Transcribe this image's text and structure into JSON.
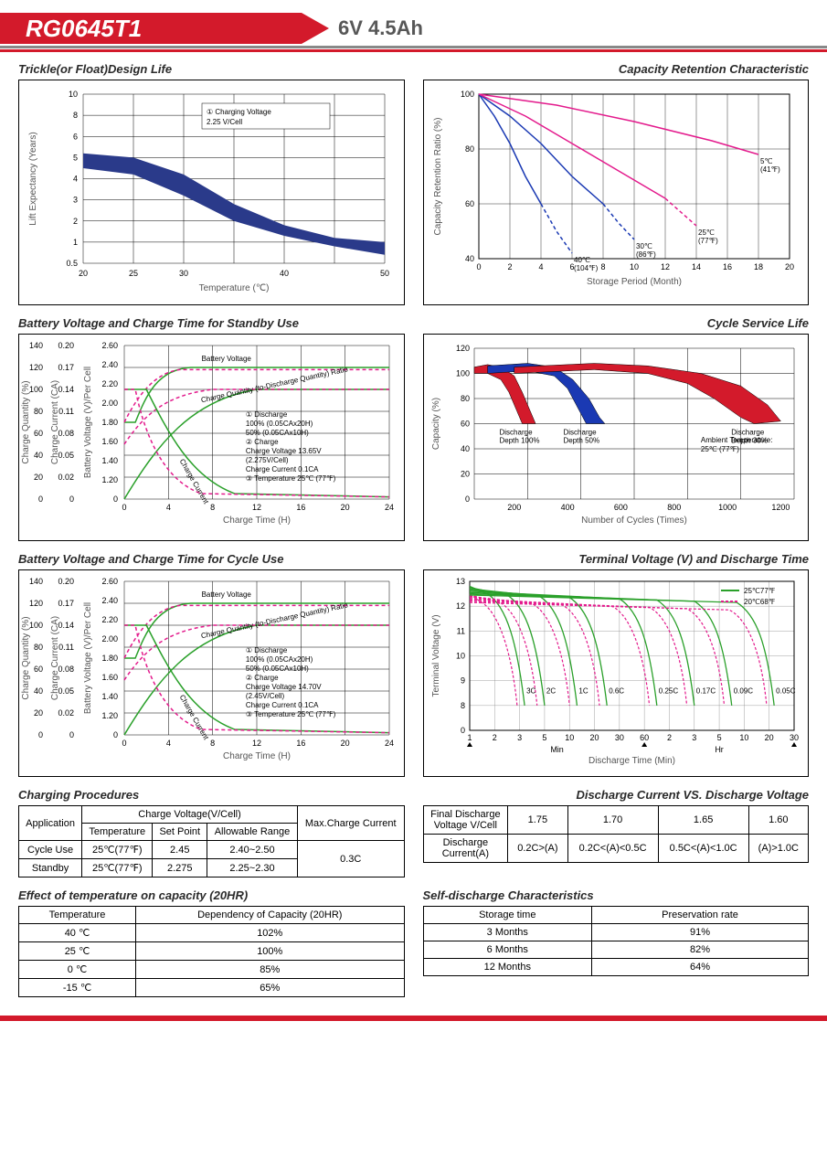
{
  "header": {
    "model": "RG0645T1",
    "spec": "6V  4.5Ah"
  },
  "charts": {
    "trickle": {
      "title": "Trickle(or Float)Design Life",
      "xlabel": "Temperature (℃)",
      "ylabel": "Lift Expectancy (Years)",
      "xticks": [
        20,
        25,
        30,
        40,
        50
      ],
      "yticks": [
        0.5,
        1,
        2,
        3,
        4,
        5,
        6,
        8,
        10
      ],
      "legend": "① Charging Voltage 2.25 V/Cell",
      "band_color": "#2a3a8a",
      "band_upper": [
        [
          20,
          5.2
        ],
        [
          25,
          5.0
        ],
        [
          30,
          4.2
        ],
        [
          35,
          2.8
        ],
        [
          40,
          1.8
        ],
        [
          45,
          1.2
        ],
        [
          50,
          1.0
        ]
      ],
      "band_lower": [
        [
          20,
          4.5
        ],
        [
          25,
          4.2
        ],
        [
          30,
          3.2
        ],
        [
          35,
          2.0
        ],
        [
          40,
          1.3
        ],
        [
          45,
          0.9
        ],
        [
          50,
          0.7
        ]
      ]
    },
    "capacity_retention": {
      "title": "Capacity Retention  Characteristic",
      "xlabel": "Storage Period (Month)",
      "ylabel": "Capacity Retention Ratio (%)",
      "xticks": [
        0,
        2,
        4,
        6,
        8,
        10,
        12,
        14,
        16,
        18,
        20
      ],
      "yticks": [
        40,
        60,
        80,
        100
      ],
      "curves": [
        {
          "label": "40℃\n(104℉)",
          "color": "#1a39b3",
          "dashcolor": "#1a39b3",
          "pts": [
            [
              0,
              100
            ],
            [
              1,
              92
            ],
            [
              2,
              82
            ],
            [
              3,
              70
            ],
            [
              4,
              60
            ]
          ],
          "dash_pts": [
            [
              4,
              60
            ],
            [
              5,
              50
            ],
            [
              6,
              42
            ]
          ]
        },
        {
          "label": "30℃\n(86℉)",
          "color": "#1a39b3",
          "dashcolor": "#1a39b3",
          "pts": [
            [
              0,
              100
            ],
            [
              2,
              92
            ],
            [
              4,
              82
            ],
            [
              6,
              70
            ],
            [
              8,
              60
            ]
          ],
          "dash_pts": [
            [
              8,
              60
            ],
            [
              9,
              53
            ],
            [
              10,
              47
            ]
          ]
        },
        {
          "label": "25℃\n(77℉)",
          "color": "#e31a8c",
          "dashcolor": "#e31a8c",
          "pts": [
            [
              0,
              100
            ],
            [
              3,
              92
            ],
            [
              6,
              82
            ],
            [
              9,
              72
            ],
            [
              12,
              62
            ]
          ],
          "dash_pts": [
            [
              12,
              62
            ],
            [
              13,
              57
            ],
            [
              14,
              52
            ]
          ]
        },
        {
          "label": "5℃\n(41℉)",
          "color": "#e31a8c",
          "dashcolor": "#e31a8c",
          "pts": [
            [
              0,
              100
            ],
            [
              5,
              96
            ],
            [
              10,
              90
            ],
            [
              15,
              83
            ],
            [
              18,
              78
            ]
          ],
          "dash_pts": []
        }
      ]
    },
    "standby_charge": {
      "title": "Battery Voltage and Charge Time for Standby Use",
      "xlabel": "Charge Time (H)",
      "y1": "Charge Quantity (%)",
      "y2": "Charge Current (CA)",
      "y3": "Battery Voltage (V)/Per Cell",
      "xticks": [
        0,
        4,
        8,
        12,
        16,
        20,
        24
      ],
      "y1ticks": [
        0,
        20,
        40,
        60,
        80,
        100,
        120,
        140
      ],
      "y2ticks": [
        "0",
        "0.02",
        "0.05",
        "0.08",
        "0.11",
        "0.14",
        "0.17",
        "0.20"
      ],
      "y3ticks": [
        "0",
        "1.20",
        "1.40",
        "1.60",
        "1.80",
        "2.00",
        "2.20",
        "2.40",
        "2.60"
      ],
      "details": [
        "① Discharge",
        "   100% (0.05CAx20H)",
        "   50% (0.05CAx10H)",
        "② Charge",
        "   Charge Voltage 13.65V",
        "   (2.275V/Cell)",
        "   Charge Current 0.1CA",
        "③ Temperature 25℃ (77℉)"
      ],
      "green": "#2aa02a",
      "pink": "#e31a8c"
    },
    "cycle_life": {
      "title": "Cycle Service Life",
      "xlabel": "Number of Cycles (Times)",
      "ylabel": "Capacity (%)",
      "xticks": [
        200,
        400,
        600,
        800,
        1000,
        1200
      ],
      "yticks": [
        0,
        20,
        40,
        60,
        80,
        100,
        120
      ],
      "bands": [
        {
          "label": "Discharge\nDepth 100%",
          "color": "#d31a2b",
          "upper": [
            [
              50,
              105
            ],
            [
              100,
              107
            ],
            [
              150,
              105
            ],
            [
              200,
              98
            ],
            [
              230,
              85
            ],
            [
              260,
              70
            ],
            [
              280,
              60
            ]
          ],
          "lower": [
            [
              50,
              100
            ],
            [
              100,
              100
            ],
            [
              150,
              95
            ],
            [
              180,
              85
            ],
            [
              210,
              70
            ],
            [
              230,
              60
            ]
          ]
        },
        {
          "label": "Discharge\nDepth 50%",
          "color": "#1a39b3",
          "upper": [
            [
              100,
              106
            ],
            [
              250,
              108
            ],
            [
              350,
              105
            ],
            [
              420,
              95
            ],
            [
              480,
              80
            ],
            [
              520,
              65
            ],
            [
              540,
              60
            ]
          ],
          "lower": [
            [
              100,
              100
            ],
            [
              250,
              102
            ],
            [
              350,
              98
            ],
            [
              400,
              88
            ],
            [
              440,
              72
            ],
            [
              470,
              60
            ]
          ]
        },
        {
          "label": "Discharge\nDepth 30%",
          "color": "#d31a2b",
          "upper": [
            [
              200,
              105
            ],
            [
              500,
              108
            ],
            [
              700,
              106
            ],
            [
              900,
              100
            ],
            [
              1050,
              90
            ],
            [
              1150,
              75
            ],
            [
              1200,
              62
            ]
          ],
          "lower": [
            [
              200,
              100
            ],
            [
              500,
              103
            ],
            [
              700,
              100
            ],
            [
              850,
              92
            ],
            [
              950,
              80
            ],
            [
              1050,
              65
            ],
            [
              1100,
              60
            ]
          ]
        }
      ],
      "note": "Ambient Temperature:\n25℃ (77℉)"
    },
    "cycle_charge": {
      "title": "Battery Voltage and Charge Time for Cycle Use",
      "details": [
        "① Discharge",
        "   100% (0.05CAx20H)",
        "   50% (0.05CAx10H)",
        "② Charge",
        "   Charge Voltage 14.70V",
        "   (2.45V/Cell)",
        "   Charge Current 0.1CA",
        "③ Temperature 25℃ (77℉)"
      ]
    },
    "discharge_curve": {
      "title": "Terminal Voltage (V) and Discharge Time",
      "ylabel": "Terminal Voltage (V)",
      "xlabel": "Discharge Time (Min)",
      "yticks": [
        0,
        8,
        9,
        10,
        11,
        12,
        13
      ],
      "legend": [
        {
          "c": "#2aa02a",
          "t": "25℃77℉"
        },
        {
          "c": "#e31a8c",
          "t": "20℃68℉"
        }
      ],
      "rates": [
        "3C",
        "2C",
        "1C",
        "0.6C",
        "0.25C",
        "0.17C",
        "0.09C",
        "0.05C"
      ],
      "minScale": [
        "1",
        "2",
        "3",
        "5",
        "10",
        "20",
        "30",
        "60"
      ],
      "hrScale": [
        "2",
        "3",
        "5",
        "10",
        "20",
        "30"
      ]
    }
  },
  "tables": {
    "charging": {
      "title": "Charging Procedures",
      "head1": [
        "Application",
        "Charge Voltage(V/Cell)",
        "Max.Charge Current"
      ],
      "head2": [
        "Temperature",
        "Set Point",
        "Allowable Range"
      ],
      "rows": [
        [
          "Cycle Use",
          "25℃(77℉)",
          "2.45",
          "2.40~2.50"
        ],
        [
          "Standby",
          "25℃(77℉)",
          "2.275",
          "2.25~2.30"
        ]
      ],
      "maxcurrent": "0.3C"
    },
    "discharge_v": {
      "title": "Discharge Current VS. Discharge Voltage",
      "rows": [
        [
          "Final Discharge Voltage V/Cell",
          "1.75",
          "1.70",
          "1.65",
          "1.60"
        ],
        [
          "Discharge Current(A)",
          "0.2C>(A)",
          "0.2C<(A)<0.5C",
          "0.5C<(A)<1.0C",
          "(A)>1.0C"
        ]
      ]
    },
    "temp_capacity": {
      "title": "Effect of temperature on capacity (20HR)",
      "head": [
        "Temperature",
        "Dependency of Capacity (20HR)"
      ],
      "rows": [
        [
          "40 ℃",
          "102%"
        ],
        [
          "25 ℃",
          "100%"
        ],
        [
          "0 ℃",
          "85%"
        ],
        [
          "-15 ℃",
          "65%"
        ]
      ]
    },
    "self_discharge": {
      "title": "Self-discharge Characteristics",
      "head": [
        "Storage time",
        "Preservation rate"
      ],
      "rows": [
        [
          "3 Months",
          "91%"
        ],
        [
          "6 Months",
          "82%"
        ],
        [
          "12 Months",
          "64%"
        ]
      ]
    }
  }
}
